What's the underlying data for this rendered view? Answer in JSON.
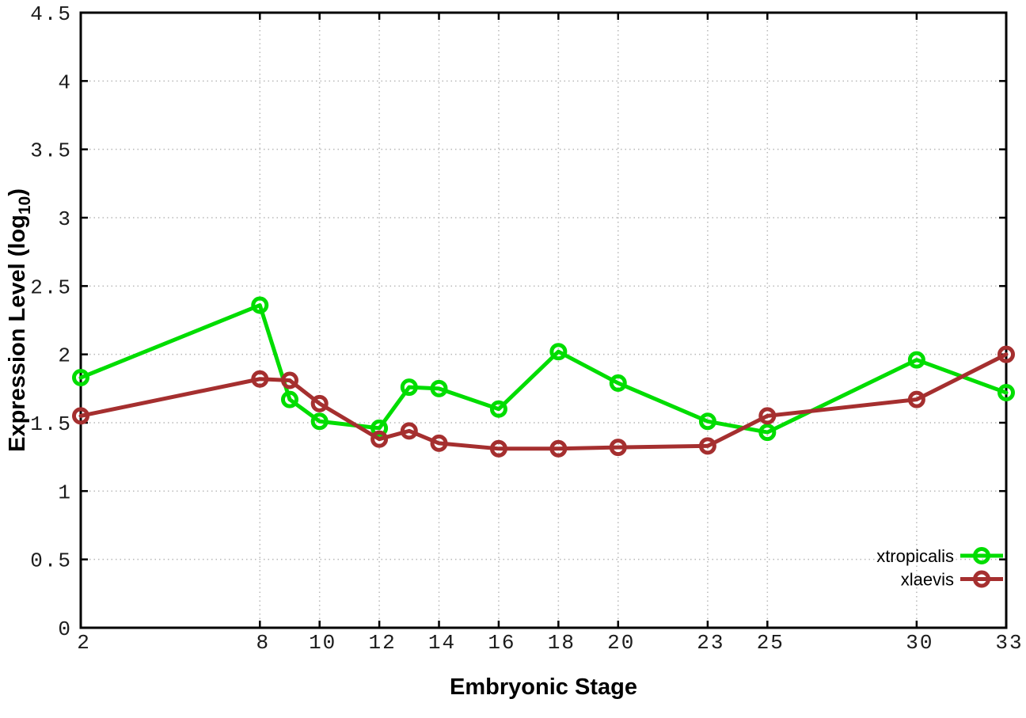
{
  "chart_data": {
    "type": "line",
    "title": "",
    "xlabel": "Embryonic Stage",
    "ylabel": "Expression Level (log10)",
    "ylabel_parts": {
      "main": "Expression Level (log",
      "sub": "10",
      "close": ")"
    },
    "xlim": [
      2,
      33
    ],
    "ylim": [
      0,
      4.5
    ],
    "x_ticks": [
      2,
      8,
      10,
      12,
      14,
      16,
      18,
      20,
      23,
      25,
      30,
      33
    ],
    "x_tick_labels": [
      "2",
      "8",
      "10",
      "12",
      "14",
      "16",
      "18",
      "20",
      "23",
      "25",
      "30",
      "33"
    ],
    "y_ticks": [
      0,
      0.5,
      1,
      1.5,
      2,
      2.5,
      3,
      3.5,
      4,
      4.5
    ],
    "y_tick_labels": [
      "0",
      "0.5",
      "1",
      "1.5",
      "2",
      "2.5",
      "3",
      "3.5",
      "4",
      "4.5"
    ],
    "grid": true,
    "grid_color": "#b8b8b8",
    "axis_color": "#000000",
    "legend_position": "bottom-right-inside",
    "marker": {
      "shape": "open-circle",
      "radius": 8.5,
      "stroke_width": 5
    },
    "line_width": 5,
    "x": [
      2,
      8,
      9,
      10,
      12,
      13,
      14,
      16,
      18,
      20,
      23,
      25,
      30,
      33
    ],
    "series": [
      {
        "name": "xtropicalis",
        "color": "#00dd00",
        "values": [
          1.83,
          2.36,
          1.67,
          1.51,
          1.46,
          1.76,
          1.75,
          1.6,
          2.02,
          1.79,
          1.51,
          1.43,
          1.96,
          1.72
        ]
      },
      {
        "name": "xlaevis",
        "color": "#a52f2f",
        "values": [
          1.55,
          1.82,
          1.81,
          1.64,
          1.38,
          1.44,
          1.35,
          1.31,
          1.31,
          1.32,
          1.33,
          1.55,
          1.67,
          2.0
        ]
      }
    ]
  }
}
